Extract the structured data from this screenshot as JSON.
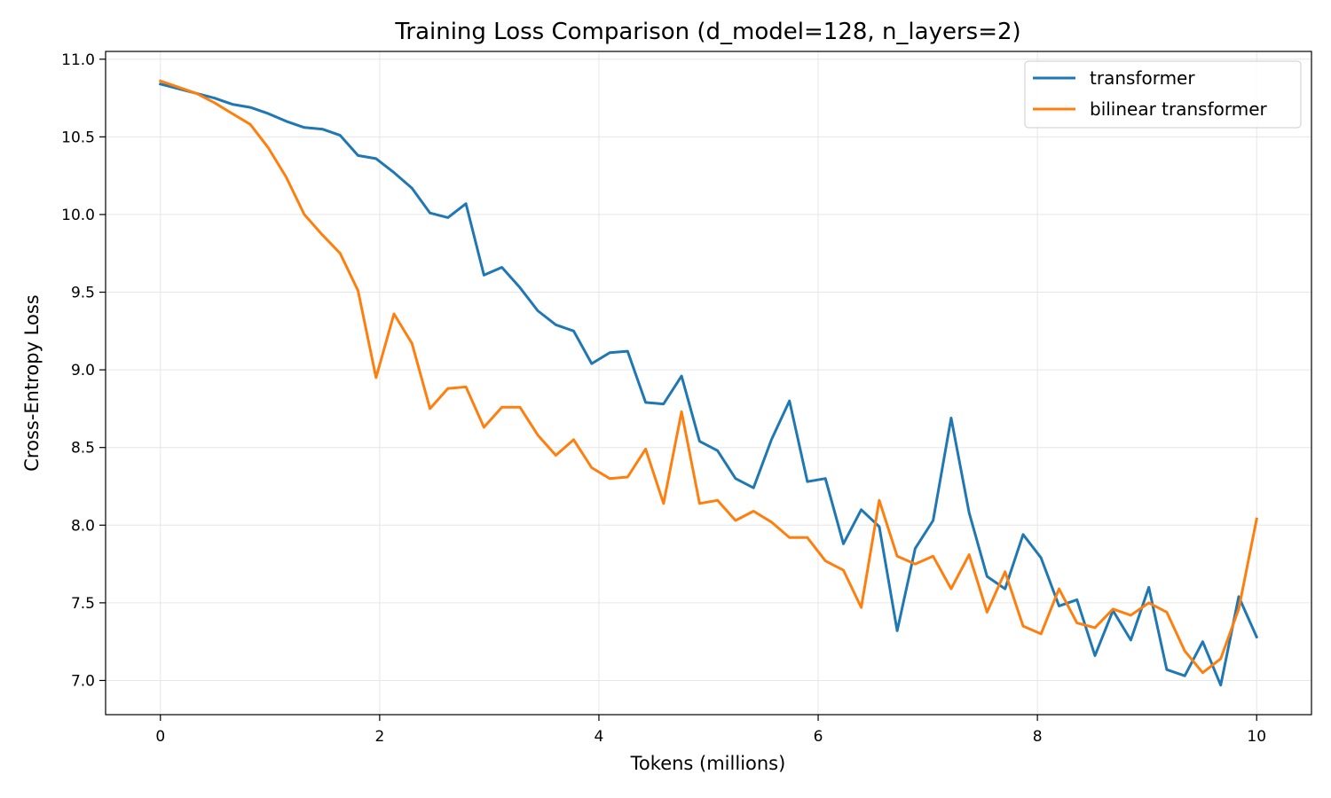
{
  "chart_data": {
    "type": "line",
    "title": "Training Loss Comparison (d_model=128, n_layers=2)",
    "xlabel": "Tokens (millions)",
    "ylabel": "Cross-Entropy Loss",
    "xlim": [
      -0.5,
      10.5
    ],
    "ylim": [
      6.78,
      11.05
    ],
    "xticks": [
      0,
      2,
      4,
      6,
      8,
      10
    ],
    "xtick_labels": [
      "0",
      "2",
      "4",
      "6",
      "8",
      "10"
    ],
    "yticks": [
      7.0,
      7.5,
      8.0,
      8.5,
      9.0,
      9.5,
      10.0,
      10.5,
      11.0
    ],
    "ytick_labels": [
      "7.0",
      "7.5",
      "8.0",
      "8.5",
      "9.0",
      "9.5",
      "10.0",
      "10.5",
      "11.0"
    ],
    "grid": true,
    "legend_position": "top-right",
    "x": [
      0.0,
      0.164,
      0.328,
      0.492,
      0.656,
      0.82,
      0.984,
      1.148,
      1.312,
      1.476,
      1.639,
      1.803,
      1.967,
      2.131,
      2.295,
      2.459,
      2.623,
      2.787,
      2.951,
      3.115,
      3.279,
      3.443,
      3.607,
      3.77,
      3.934,
      4.098,
      4.262,
      4.426,
      4.59,
      4.754,
      4.918,
      5.082,
      5.246,
      5.41,
      5.574,
      5.738,
      5.902,
      6.066,
      6.23,
      6.393,
      6.557,
      6.721,
      6.885,
      7.049,
      7.213,
      7.377,
      7.541,
      7.705,
      7.869,
      8.033,
      8.197,
      8.361,
      8.525,
      8.689,
      8.852,
      9.016,
      9.18,
      9.344,
      9.508,
      9.672,
      9.836,
      10.0
    ],
    "series": [
      {
        "name": "transformer",
        "color": "#1f77b4",
        "values": [
          10.84,
          10.81,
          10.78,
          10.75,
          10.71,
          10.69,
          10.65,
          10.6,
          10.56,
          10.55,
          10.51,
          10.38,
          10.36,
          10.27,
          10.17,
          10.01,
          9.98,
          10.07,
          9.61,
          9.66,
          9.53,
          9.38,
          9.29,
          9.25,
          9.04,
          9.11,
          9.12,
          8.79,
          8.78,
          8.96,
          8.54,
          8.48,
          8.3,
          8.24,
          8.55,
          8.8,
          8.28,
          8.3,
          7.88,
          8.1,
          7.99,
          7.32,
          7.85,
          8.03,
          8.69,
          8.08,
          7.67,
          7.59,
          7.94,
          7.79,
          7.48,
          7.52,
          7.16,
          7.45,
          7.26,
          7.6,
          7.07,
          7.03,
          7.25,
          6.97,
          7.54,
          7.28
        ]
      },
      {
        "name": "bilinear transformer",
        "color": "#ff7f0e",
        "values": [
          10.86,
          10.82,
          10.78,
          10.72,
          10.65,
          10.58,
          10.43,
          10.24,
          10.0,
          9.87,
          9.75,
          9.51,
          8.95,
          9.36,
          9.17,
          8.75,
          8.88,
          8.89,
          8.63,
          8.76,
          8.76,
          8.58,
          8.45,
          8.55,
          8.37,
          8.3,
          8.31,
          8.49,
          8.14,
          8.73,
          8.14,
          8.16,
          8.03,
          8.09,
          8.02,
          7.92,
          7.92,
          7.77,
          7.71,
          7.47,
          8.16,
          7.8,
          7.75,
          7.8,
          7.59,
          7.81,
          7.44,
          7.7,
          7.35,
          7.3,
          7.59,
          7.37,
          7.34,
          7.46,
          7.42,
          7.5,
          7.44,
          7.19,
          7.05,
          7.14,
          7.46,
          8.04
        ]
      }
    ]
  }
}
